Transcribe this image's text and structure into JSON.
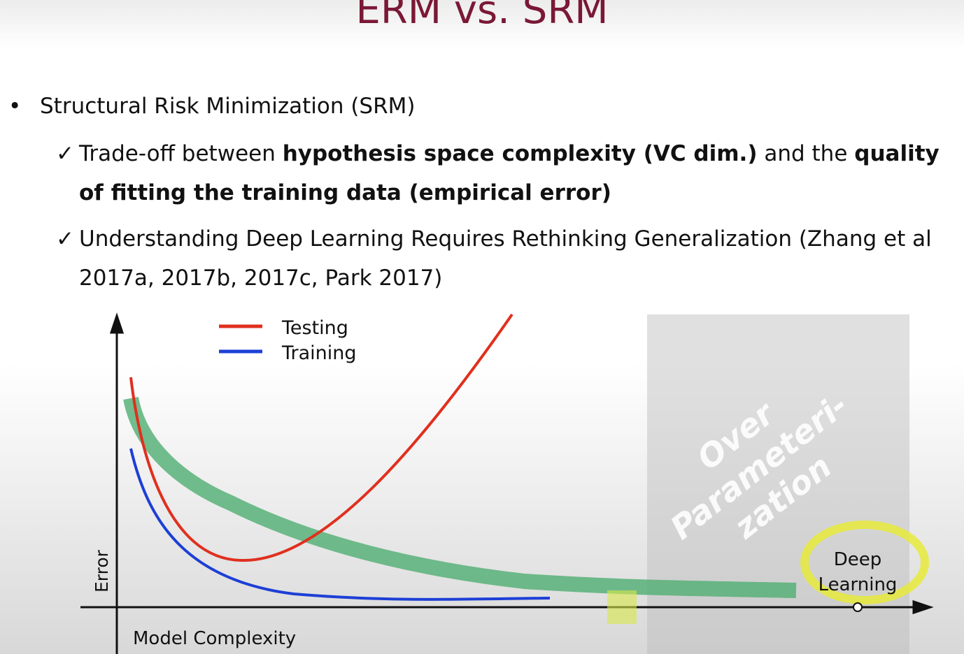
{
  "title": "ERM vs. SRM",
  "bullet": {
    "marker": "•",
    "text": "Structural Risk Minimization (SRM)",
    "checks": [
      {
        "marker": "✓",
        "segments": [
          {
            "text": "Trade-off between ",
            "bold": false
          },
          {
            "text": "hypothesis space complexity (VC dim.)",
            "bold": true
          },
          {
            "text": " and the ",
            "bold": false
          },
          {
            "text": "quality of fitting the training data (empirical error)",
            "bold": true
          }
        ]
      },
      {
        "marker": "✓",
        "segments": [
          {
            "text": "Understanding Deep Learning Requires Rethinking Generalization (Zhang et al 2017a, 2017b, 2017c, Park 2017)",
            "bold": false
          }
        ]
      }
    ]
  },
  "diagram": {
    "legend": [
      {
        "name": "Testing",
        "color": "#e0301e"
      },
      {
        "name": "Training",
        "color": "#1d3fd6"
      }
    ],
    "y_axis_label": "Error",
    "x_axis_label": "Model Complexity",
    "region_label": [
      "Over",
      "Parameteri-",
      "zation"
    ],
    "annotation": [
      "Deep",
      "Learning"
    ]
  }
}
